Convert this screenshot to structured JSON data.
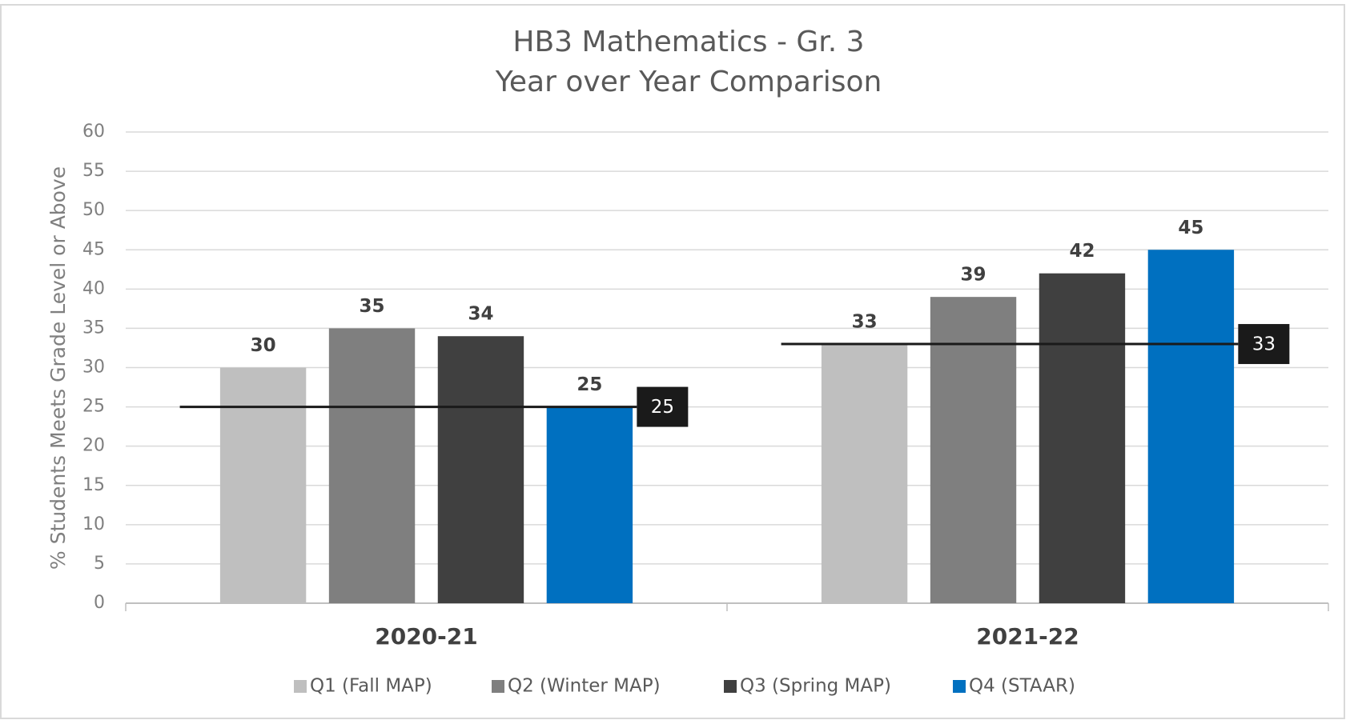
{
  "chart_data": {
    "type": "bar",
    "title": "HB3 Mathematics - Gr. 3",
    "subtitle": "Year over Year Comparison",
    "y_label": "% Students Meets Grade Level or Above",
    "categories": [
      "2020-21",
      "2021-22"
    ],
    "series": [
      {
        "name": "Q1 (Fall MAP)",
        "color": "#bfbfbf",
        "values": [
          30,
          33
        ]
      },
      {
        "name": "Q2 (Winter MAP)",
        "color": "#7f7f7f",
        "values": [
          35,
          39
        ]
      },
      {
        "name": "Q3 (Spring MAP)",
        "color": "#404040",
        "values": [
          34,
          42
        ]
      },
      {
        "name": "Q4 (STAAR)",
        "color": "#0070c0",
        "values": [
          25,
          45
        ]
      }
    ],
    "targets": [
      25,
      33
    ],
    "target_color": "#1a1a1a",
    "ylim": [
      0,
      60
    ],
    "yticks": [
      0,
      5,
      10,
      15,
      20,
      25,
      30,
      35,
      40,
      45,
      50,
      55,
      60
    ],
    "grid": true,
    "legend": "bottom"
  }
}
